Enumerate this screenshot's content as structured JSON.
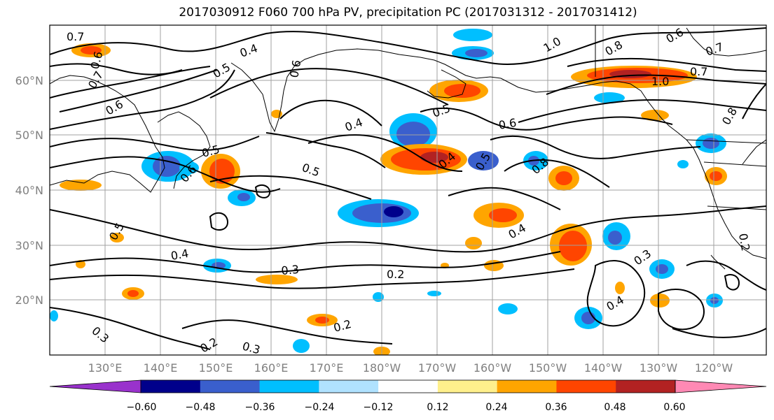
{
  "title": "2017030912 F060 700 hPa PV, precipitation PC (2017031312 - 2017031412)",
  "map": {
    "lon_labels": [
      "130°E",
      "140°E",
      "150°E",
      "160°E",
      "170°E",
      "180°W",
      "170°W",
      "160°W",
      "150°W",
      "140°W",
      "130°W",
      "120°W"
    ],
    "lat_labels": [
      "60°N",
      "50°N",
      "40°N",
      "30°N",
      "20°N"
    ],
    "contour_labels": [
      "0.7",
      "0.6",
      "0.7",
      "0.6",
      "0.4",
      "0.5",
      "0.6",
      "0.4",
      "0.5",
      "0.5",
      "0.5",
      "0.6",
      "0.5",
      "0.4",
      "0.3",
      "0.2",
      "0.2",
      "0.3",
      "0.2",
      "0.3",
      "0.4",
      "0.5",
      "0.6",
      "0.8",
      "0.4",
      "0.3",
      "0.4",
      "1.0",
      "0.8",
      "1.0",
      "0.6",
      "0.7",
      "0.8",
      "0.7",
      "0.2"
    ]
  },
  "colorbar": {
    "tick_labels": [
      "−0.60",
      "−0.48",
      "−0.36",
      "−0.24",
      "−0.12",
      "0.12",
      "0.24",
      "0.36",
      "0.48",
      "0.60"
    ],
    "colors": [
      "#9932cc",
      "#00008b",
      "#3a5fcd",
      "#00bfff",
      "#b0e2ff",
      "#ffffff",
      "#fff08c",
      "#ffa500",
      "#ff4500",
      "#b22222",
      "#ff89b4"
    ]
  },
  "colors": {
    "frame": "#000000",
    "grid": "#a0a0a0",
    "tick_text": "#808080"
  }
}
